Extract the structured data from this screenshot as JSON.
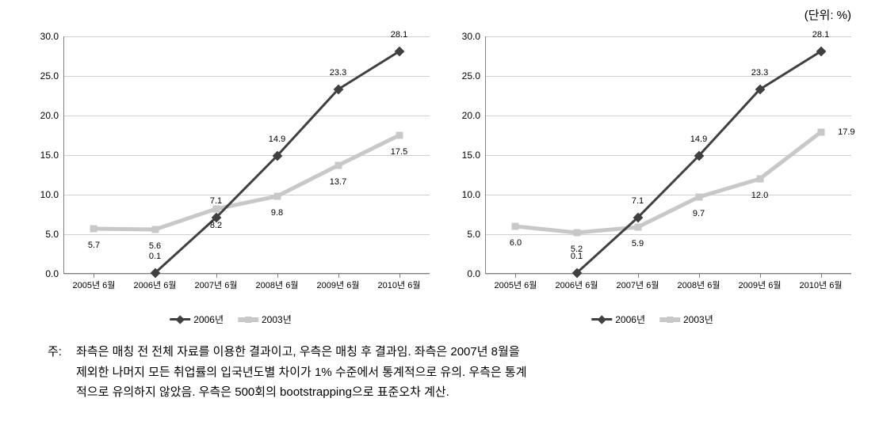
{
  "unit_label": "(단위: %)",
  "chart_common": {
    "type": "line",
    "ylim": [
      0,
      30
    ],
    "ytick_step": 5,
    "y_ticks": [
      "0.0",
      "5.0",
      "10.0",
      "15.0",
      "20.0",
      "25.0",
      "30.0"
    ],
    "x_categories": [
      "2005년 6월",
      "2006년 6월",
      "2007년 6월",
      "2008년 6월",
      "2009년 6월",
      "2010년 6월"
    ],
    "background_color": "#ffffff",
    "grid_color": "#d0d0d0",
    "axis_color": "#808080",
    "series_dark": {
      "name": "2006년",
      "color": "#404040",
      "marker": "diamond",
      "line_width": 3
    },
    "series_light": {
      "name": "2003년",
      "color": "#c8c8c8",
      "marker": "square",
      "line_width": 5
    },
    "label_fontsize": 11,
    "tick_fontsize": 12
  },
  "left_chart": {
    "dark_values": [
      null,
      0.1,
      7.1,
      14.9,
      23.3,
      28.1
    ],
    "light_values": [
      5.7,
      5.6,
      8.2,
      9.8,
      13.7,
      17.5
    ],
    "dark_labels": [
      "",
      "0.1",
      "7.1",
      "14.9",
      "23.3",
      "28.1"
    ],
    "light_labels": [
      "5.7",
      "5.6",
      "8.2",
      "9.8",
      "13.7",
      "17.5"
    ]
  },
  "right_chart": {
    "dark_values": [
      null,
      0.1,
      7.1,
      14.9,
      23.3,
      28.1
    ],
    "light_values": [
      6.0,
      5.2,
      5.9,
      9.7,
      12.0,
      17.9
    ],
    "dark_labels": [
      "",
      "0.1",
      "7.1",
      "14.9",
      "23.3",
      "28.1"
    ],
    "light_labels": [
      "6.0",
      "5.2",
      "5.9",
      "9.7",
      "12.0",
      "17.9"
    ]
  },
  "legend": {
    "dark": "2006년",
    "light": "2003년"
  },
  "footnote": {
    "prefix": "주:",
    "line1": "좌측은 매칭 전 전체 자료를 이용한 결과이고, 우측은 매칭 후 결과임. 좌측은 2007년 8월을",
    "line2": "제외한 나머지 모든 취업률의 입국년도별 차이가 1% 수준에서 통계적으로 유의. 우측은 통계",
    "line3": "적으로 유의하지 않았음. 우측은 500회의 bootstrapping으로 표준오차 계산."
  }
}
